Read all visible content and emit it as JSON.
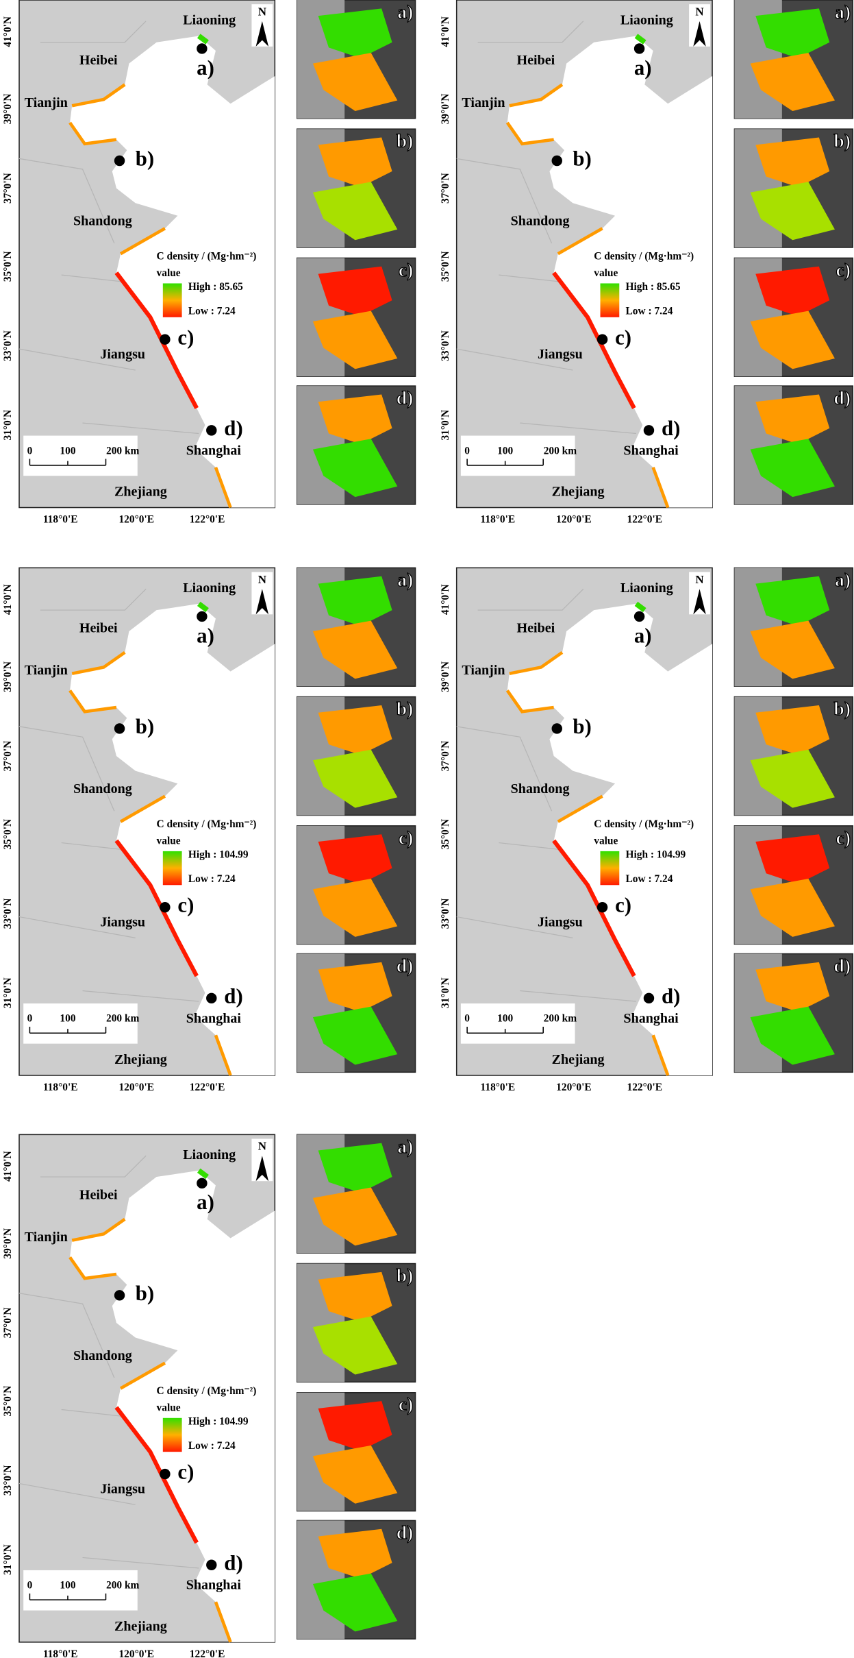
{
  "map_labels": {
    "provinces": [
      "Liaoning",
      "Heibei",
      "Tianjin",
      "Shandong",
      "Jiangsu",
      "Shanghai",
      "Zhejiang"
    ],
    "sites": [
      "a)",
      "b)",
      "c)",
      "d)"
    ],
    "latitudes": [
      "41°0'N",
      "39°0'N",
      "37°0'N",
      "35°0'N",
      "33°0'N",
      "31°0'N"
    ],
    "longitudes": [
      "118°0'E",
      "120°0'E",
      "122°0'E"
    ],
    "north": "N",
    "scale_bar": [
      "0",
      "100",
      "200 km"
    ],
    "legend_title": "C density / (Mg·hm⁻²)",
    "legend_subtitle": "value"
  },
  "panels": [
    {
      "high": "High : 85.65",
      "low": "Low : 7.24"
    },
    {
      "high": "High : 85.65",
      "low": "Low : 7.24"
    },
    {
      "high": "High : 104.99",
      "low": "Low : 7.24"
    },
    {
      "high": "High : 104.99",
      "low": "Low : 7.24"
    },
    {
      "high": "High : 104.99",
      "low": "Low : 7.24"
    }
  ]
}
